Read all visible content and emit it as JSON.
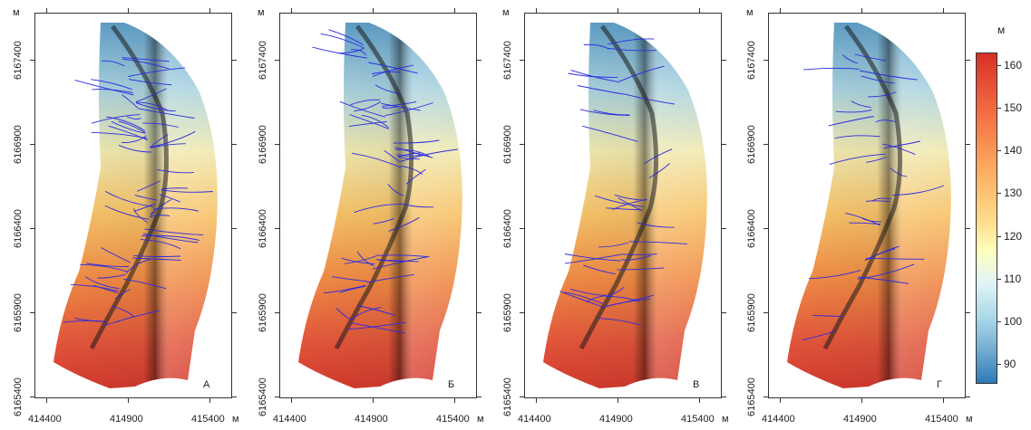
{
  "panels": [
    {
      "letter": "А",
      "y_ticks": [
        "6167400",
        "6166900",
        "6166400",
        "6165900",
        "6165400"
      ],
      "x_ticks": [
        "414400",
        "414900",
        "415400"
      ],
      "unit": "м",
      "stream_density": 1.0
    },
    {
      "letter": "Б",
      "y_ticks": [
        "6167400",
        "6166900",
        "6166400",
        "6165900",
        "6165400"
      ],
      "x_ticks": [
        "414400",
        "414900",
        "415400"
      ],
      "unit": "м",
      "stream_density": 0.85
    },
    {
      "letter": "В",
      "y_ticks": [
        "6167400",
        "6166900",
        "6166400",
        "6165900",
        "6165400"
      ],
      "x_ticks": [
        "414400",
        "414900",
        "415400"
      ],
      "unit": "м",
      "stream_density": 0.6
    },
    {
      "letter": "Г",
      "y_ticks": [
        "6167400",
        "6166900",
        "6166400",
        "6165900",
        "6165400"
      ],
      "x_ticks": [
        "414400",
        "414900",
        "415400"
      ],
      "unit": "м",
      "stream_density": 0.5
    }
  ],
  "colorbar": {
    "unit": "м",
    "ticks": [
      "160",
      "150",
      "140",
      "130",
      "120",
      "110",
      "100",
      "90"
    ],
    "colors": {
      "high": "#d73027",
      "mid": "#ffffbf",
      "low": "#2c7bb6",
      "streams": "#2a2ae0"
    }
  }
}
